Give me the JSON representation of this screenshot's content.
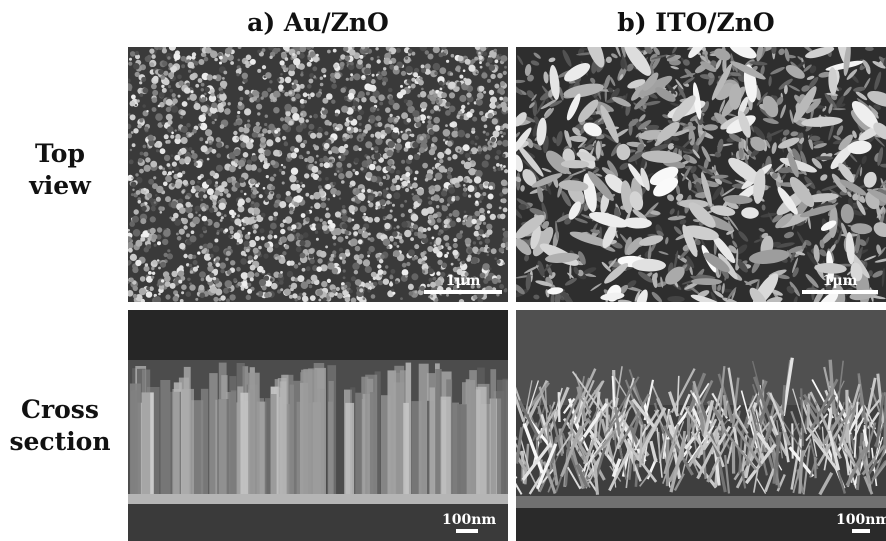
{
  "columns": {
    "a": "a) Au/ZnO",
    "b": "b) ITO/ZnO"
  },
  "rows": {
    "top": [
      "Top",
      "view"
    ],
    "cross": [
      "Cross",
      "section"
    ]
  },
  "scalebars": {
    "top_a": "1μm",
    "top_b": "1μm",
    "cross_a": "100nm",
    "cross_b": "100nm"
  }
}
